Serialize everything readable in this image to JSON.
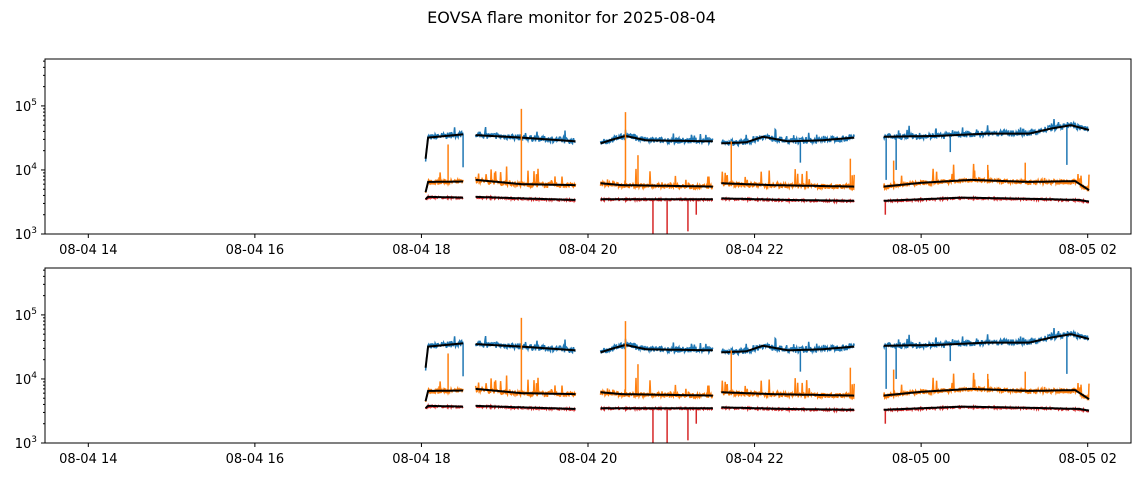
{
  "chart_data": {
    "type": "line",
    "title": "EOVSA flare monitor for 2025-08-04",
    "xlabel": "",
    "ylabel": "",
    "yscale": "log",
    "ylim": [
      1000,
      540000
    ],
    "xlim_hours": [
      13.48,
      26.52
    ],
    "x_ticks": [
      {
        "h": 14,
        "label": "08-04 14"
      },
      {
        "h": 16,
        "label": "08-04 16"
      },
      {
        "h": 18,
        "label": "08-04 18"
      },
      {
        "h": 20,
        "label": "08-04 20"
      },
      {
        "h": 22,
        "label": "08-04 22"
      },
      {
        "h": 24,
        "label": "08-05 00"
      },
      {
        "h": 26,
        "label": "08-05 02"
      }
    ],
    "y_ticks": [
      {
        "v": 1000,
        "base": "10",
        "exp": "3"
      },
      {
        "v": 10000,
        "base": "10",
        "exp": "4"
      },
      {
        "v": 100000,
        "base": "10",
        "exp": "5"
      }
    ],
    "colors": {
      "ch1": "#1f77b4",
      "ch2": "#ff7f0e",
      "ch3": "#d62728",
      "smooth": "#000000"
    },
    "segments": [
      {
        "start": 18.05,
        "end": 18.5,
        "ch1": [
          [
            18.05,
            15000
          ],
          [
            18.08,
            32000
          ],
          [
            18.3,
            34000
          ],
          [
            18.5,
            36000
          ]
        ],
        "ch2": [
          [
            18.05,
            4500
          ],
          [
            18.08,
            6500
          ],
          [
            18.5,
            6600
          ]
        ],
        "ch3": [
          [
            18.05,
            3500
          ],
          [
            18.08,
            3800
          ],
          [
            18.5,
            3700
          ]
        ]
      },
      {
        "start": 18.65,
        "end": 19.85,
        "ch1": [
          [
            18.65,
            35000
          ],
          [
            19.2,
            32000
          ],
          [
            19.85,
            28000
          ]
        ],
        "ch2": [
          [
            18.65,
            7000
          ],
          [
            19.2,
            6000
          ],
          [
            19.85,
            5800
          ]
        ],
        "ch3": [
          [
            18.65,
            3800
          ],
          [
            19.2,
            3600
          ],
          [
            19.85,
            3400
          ]
        ]
      },
      {
        "start": 20.15,
        "end": 21.5,
        "ch1": [
          [
            20.15,
            26000
          ],
          [
            20.3,
            30000
          ],
          [
            20.45,
            34000
          ],
          [
            20.7,
            29000
          ],
          [
            21.5,
            28000
          ]
        ],
        "ch2": [
          [
            20.15,
            6200
          ],
          [
            20.4,
            5800
          ],
          [
            21.5,
            5500
          ]
        ],
        "ch3": [
          [
            20.15,
            3500
          ],
          [
            21.5,
            3500
          ]
        ]
      },
      {
        "start": 21.6,
        "end": 23.2,
        "ch1": [
          [
            21.6,
            26000
          ],
          [
            21.9,
            27000
          ],
          [
            22.1,
            33000
          ],
          [
            22.4,
            28000
          ],
          [
            22.8,
            29000
          ],
          [
            23.2,
            32000
          ]
        ],
        "ch2": [
          [
            21.6,
            6200
          ],
          [
            22.2,
            5800
          ],
          [
            23.2,
            5500
          ]
        ],
        "ch3": [
          [
            21.6,
            3600
          ],
          [
            22.4,
            3400
          ],
          [
            23.2,
            3300
          ]
        ]
      },
      {
        "start": 23.55,
        "end": 26.02,
        "ch1": [
          [
            23.55,
            33000
          ],
          [
            24.2,
            34000
          ],
          [
            24.8,
            37000
          ],
          [
            25.3,
            37000
          ],
          [
            25.55,
            44000
          ],
          [
            25.8,
            50000
          ],
          [
            26.02,
            42000
          ]
        ],
        "ch2": [
          [
            23.55,
            5500
          ],
          [
            24.0,
            6300
          ],
          [
            24.6,
            7000
          ],
          [
            25.3,
            6500
          ],
          [
            25.85,
            6700
          ],
          [
            26.02,
            4800
          ]
        ],
        "ch3": [
          [
            23.55,
            3300
          ],
          [
            24.5,
            3700
          ],
          [
            25.5,
            3500
          ],
          [
            25.9,
            3400
          ],
          [
            26.02,
            3200
          ]
        ]
      }
    ],
    "spikes": [
      {
        "ch": "ch2",
        "h": 18.32,
        "v": 25000
      },
      {
        "ch": "ch2",
        "h": 19.2,
        "v": 90000
      },
      {
        "ch": "ch2",
        "h": 20.45,
        "v": 80000
      },
      {
        "ch": "ch2",
        "h": 20.6,
        "v": 17000
      },
      {
        "ch": "ch2",
        "h": 21.72,
        "v": 28000
      },
      {
        "ch": "ch2",
        "h": 23.15,
        "v": 15000
      },
      {
        "ch": "ch2",
        "h": 23.67,
        "v": 14000
      },
      {
        "ch": "ch2",
        "h": 24.8,
        "v": 12000
      },
      {
        "ch": "ch2",
        "h": 25.25,
        "v": 13000
      },
      {
        "ch": "ch1",
        "h": 18.5,
        "v": 11000
      },
      {
        "ch": "ch1",
        "h": 22.55,
        "v": 13000
      },
      {
        "ch": "ch1",
        "h": 23.58,
        "v": 7000
      },
      {
        "ch": "ch1",
        "h": 23.7,
        "v": 10000
      },
      {
        "ch": "ch1",
        "h": 24.35,
        "v": 19000
      },
      {
        "ch": "ch1",
        "h": 25.75,
        "v": 12000
      },
      {
        "ch": "ch3",
        "h": 20.78,
        "v": 1000
      },
      {
        "ch": "ch3",
        "h": 20.95,
        "v": 1000
      },
      {
        "ch": "ch3",
        "h": 21.2,
        "v": 1100
      },
      {
        "ch": "ch3",
        "h": 21.3,
        "v": 2000
      },
      {
        "ch": "ch3",
        "h": 23.57,
        "v": 2000
      }
    ],
    "panels": [
      "top",
      "bottom"
    ]
  }
}
